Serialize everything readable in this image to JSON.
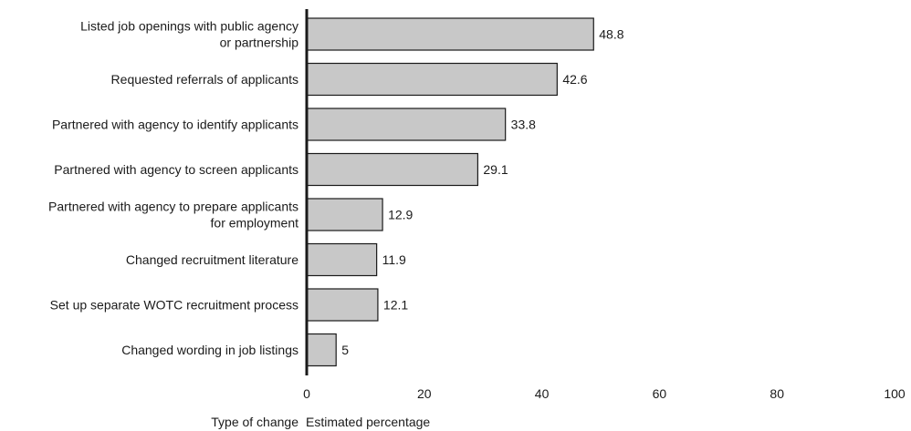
{
  "chart_data": {
    "type": "bar",
    "orientation": "horizontal",
    "categories": [
      [
        "Listed job openings with public agency",
        "or partnership"
      ],
      [
        "Requested referrals of applicants"
      ],
      [
        "Partnered with agency to identify applicants"
      ],
      [
        "Partnered with agency to screen applicants"
      ],
      [
        "Partnered with agency to prepare applicants",
        "for employment"
      ],
      [
        "Changed recruitment literature"
      ],
      [
        "Set up separate WOTC  recruitment process"
      ],
      [
        "Changed wording in job listings"
      ]
    ],
    "values": [
      48.8,
      42.6,
      33.8,
      29.1,
      12.9,
      11.9,
      12.1,
      5
    ],
    "value_labels": [
      "48.8",
      "42.6",
      "33.8",
      "29.1",
      "12.9",
      "11.9",
      "12.1",
      "5"
    ],
    "xlim": [
      0,
      100
    ],
    "xticks": [
      0,
      20,
      40,
      60,
      80,
      100
    ],
    "xtick_labels": [
      "0",
      "20",
      "40",
      "60",
      "80",
      "100"
    ],
    "category_axis_label": "Type of change",
    "value_axis_label": "Estimated percentage",
    "bar_color": "#c8c8c8",
    "bar_edge_color": "#1a1a1a",
    "grid": false,
    "legend": "none"
  }
}
